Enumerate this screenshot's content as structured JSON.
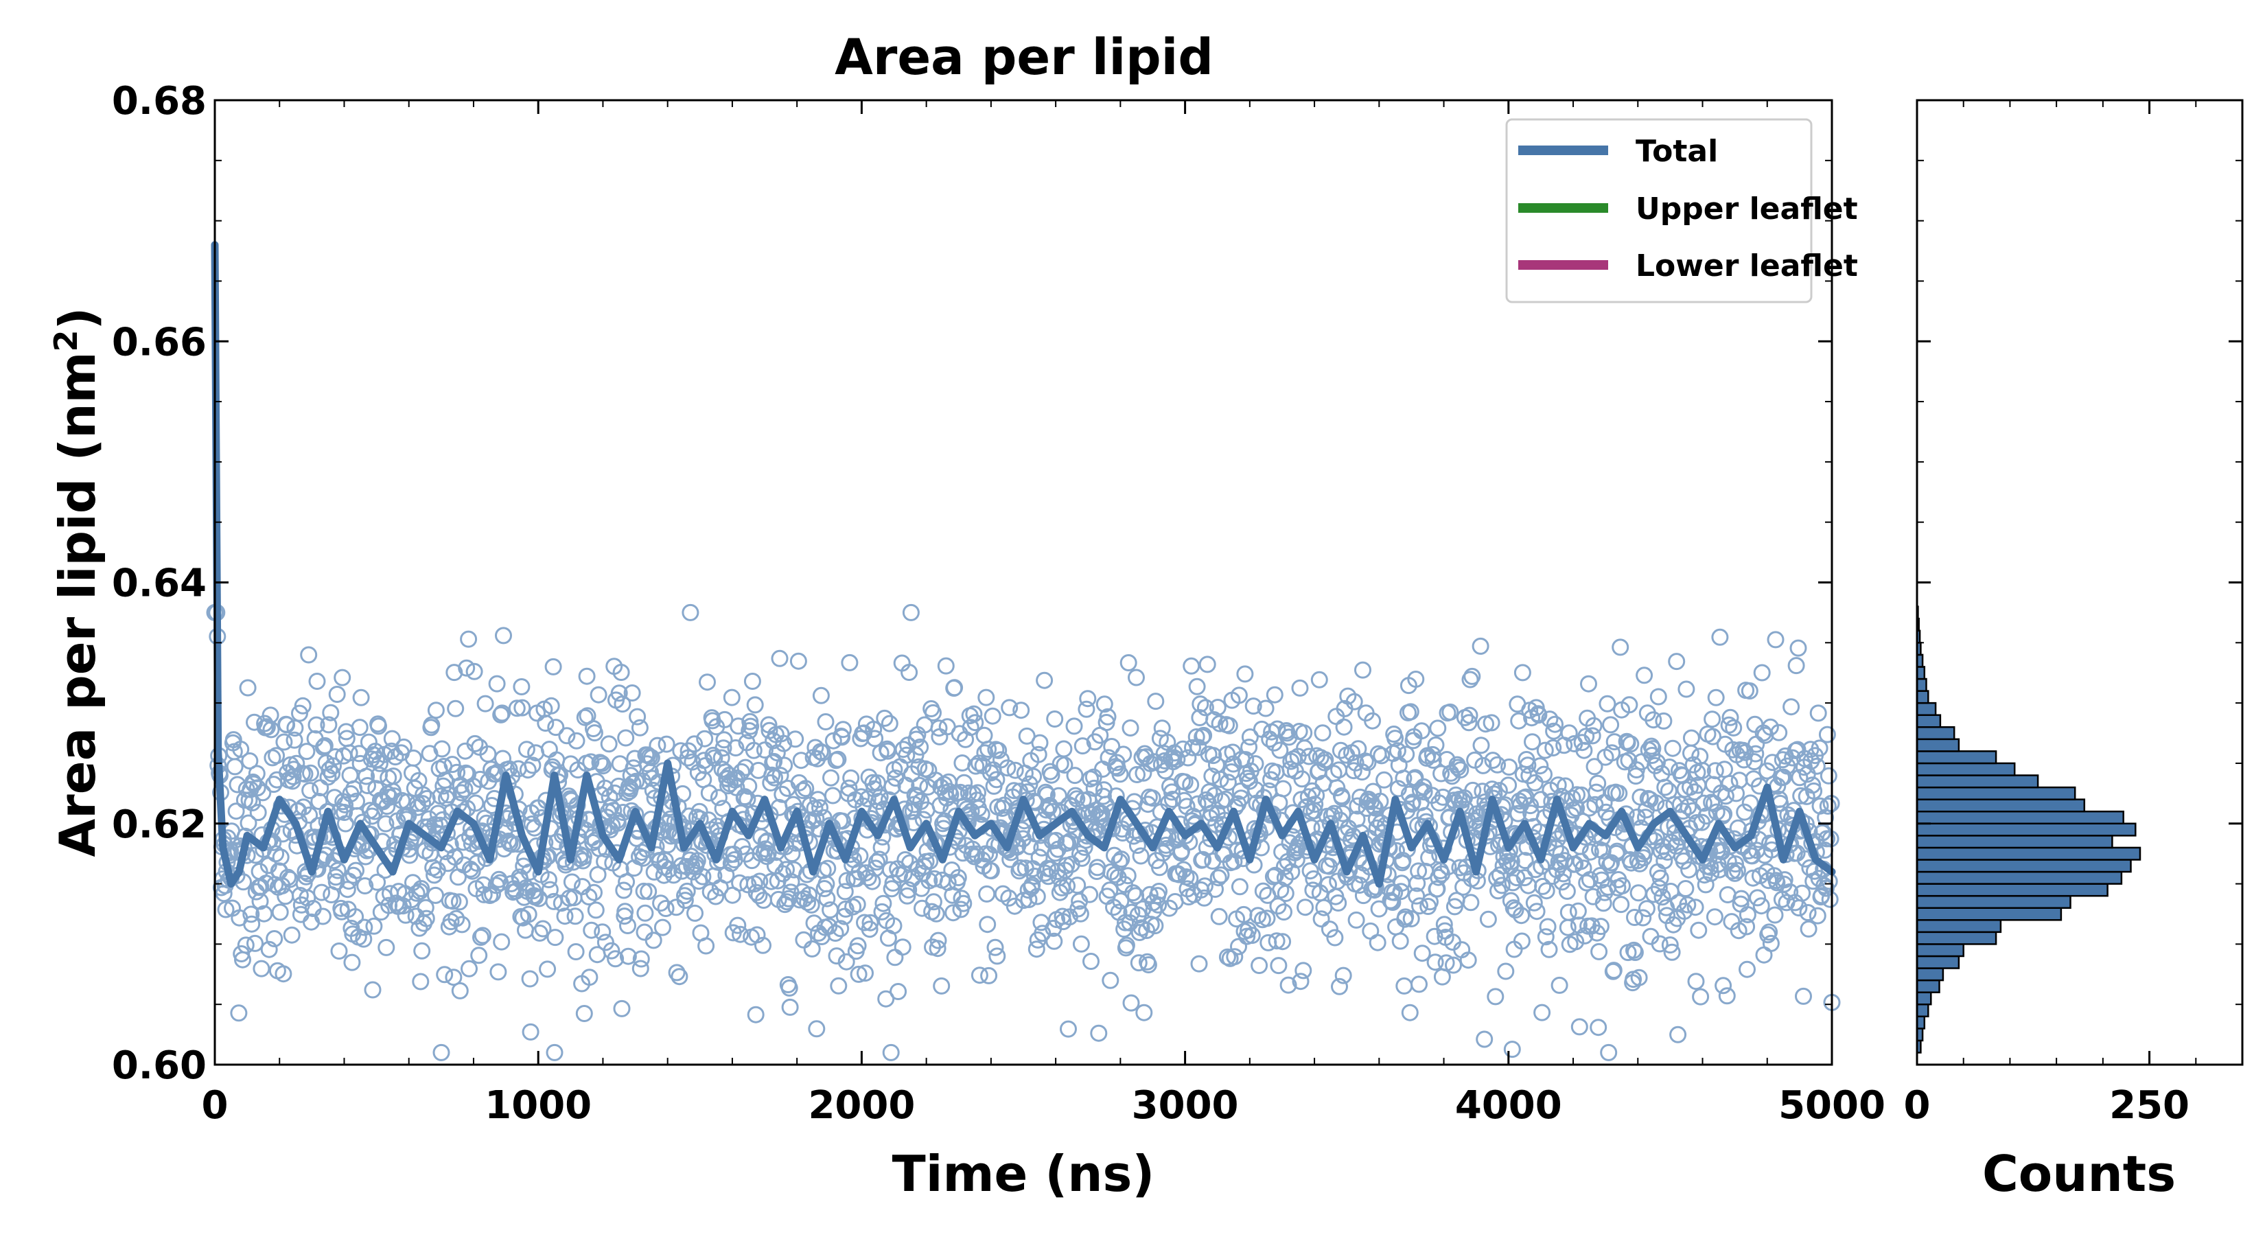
{
  "colors": {
    "total": "#4675a8",
    "upper": "#2a8a2a",
    "lower": "#a8367a",
    "scatter": "#88a8cc",
    "hist_fill": "#4675a8",
    "axis": "#000000"
  },
  "chart_data": [
    {
      "type": "scatter",
      "title": "Area per lipid",
      "xlabel": "Time (ns)",
      "ylabel": "Area per lipid (nm",
      "ylabel_sup": "2",
      "ylabel_close": ")",
      "xlim": [
        0,
        5000
      ],
      "ylim": [
        0.6,
        0.68
      ],
      "xticks": [
        0,
        1000,
        2000,
        3000,
        4000,
        5000
      ],
      "xtick_labels": [
        "0",
        "1000",
        "2000",
        "3000",
        "4000",
        "5000"
      ],
      "yticks": [
        0.6,
        0.62,
        0.64,
        0.66,
        0.68
      ],
      "ytick_labels": [
        "0.60",
        "0.62",
        "0.64",
        "0.66",
        "0.68"
      ],
      "grid": false,
      "legend_position": "top-right",
      "legend": [
        {
          "name": "Total",
          "color_key": "total"
        },
        {
          "name": "Upper leaflet",
          "color_key": "upper"
        },
        {
          "name": "Lower leaflet",
          "color_key": "lower"
        }
      ],
      "scatter_summary": {
        "count": 2500,
        "mean": 0.6195,
        "std": 0.0058,
        "min": 0.601,
        "max": 0.6375
      },
      "running_average": {
        "name": "Total",
        "x": [
          0,
          10,
          25,
          50,
          75,
          100,
          150,
          200,
          250,
          300,
          350,
          400,
          450,
          500,
          550,
          600,
          650,
          700,
          750,
          800,
          850,
          900,
          950,
          1000,
          1050,
          1100,
          1150,
          1200,
          1250,
          1300,
          1350,
          1400,
          1450,
          1500,
          1550,
          1600,
          1650,
          1700,
          1750,
          1800,
          1850,
          1900,
          1950,
          2000,
          2050,
          2100,
          2150,
          2200,
          2250,
          2300,
          2350,
          2400,
          2450,
          2500,
          2550,
          2600,
          2650,
          2700,
          2750,
          2800,
          2850,
          2900,
          2950,
          3000,
          3050,
          3100,
          3150,
          3200,
          3250,
          3300,
          3350,
          3400,
          3450,
          3500,
          3550,
          3600,
          3650,
          3700,
          3750,
          3800,
          3850,
          3900,
          3950,
          4000,
          4050,
          4100,
          4150,
          4200,
          4250,
          4300,
          4350,
          4400,
          4450,
          4500,
          4550,
          4600,
          4650,
          4700,
          4750,
          4800,
          4850,
          4900,
          4950,
          5000
        ],
        "y": [
          0.668,
          0.626,
          0.618,
          0.615,
          0.616,
          0.619,
          0.618,
          0.622,
          0.62,
          0.616,
          0.621,
          0.617,
          0.62,
          0.618,
          0.616,
          0.62,
          0.619,
          0.618,
          0.621,
          0.62,
          0.617,
          0.624,
          0.619,
          0.616,
          0.624,
          0.617,
          0.624,
          0.619,
          0.617,
          0.621,
          0.618,
          0.625,
          0.618,
          0.62,
          0.617,
          0.621,
          0.619,
          0.622,
          0.618,
          0.621,
          0.616,
          0.62,
          0.617,
          0.621,
          0.619,
          0.622,
          0.618,
          0.62,
          0.617,
          0.621,
          0.619,
          0.62,
          0.618,
          0.622,
          0.619,
          0.62,
          0.621,
          0.619,
          0.618,
          0.622,
          0.62,
          0.618,
          0.621,
          0.619,
          0.62,
          0.618,
          0.621,
          0.617,
          0.622,
          0.619,
          0.621,
          0.617,
          0.62,
          0.616,
          0.619,
          0.615,
          0.622,
          0.618,
          0.62,
          0.617,
          0.621,
          0.616,
          0.622,
          0.618,
          0.62,
          0.617,
          0.622,
          0.618,
          0.62,
          0.619,
          0.621,
          0.618,
          0.62,
          0.621,
          0.619,
          0.617,
          0.62,
          0.618,
          0.619,
          0.623,
          0.617,
          0.621,
          0.617,
          0.616
        ]
      }
    },
    {
      "type": "bar",
      "orientation": "horizontal",
      "xlabel": "Counts",
      "xlim": [
        0,
        350
      ],
      "xticks": [
        0,
        250
      ],
      "xtick_labels": [
        "0",
        "250"
      ],
      "ylim": [
        0.6,
        0.68
      ],
      "bin_centers": [
        0.6015,
        0.6025,
        0.6035,
        0.6045,
        0.6055,
        0.6065,
        0.6075,
        0.6085,
        0.6095,
        0.6105,
        0.6115,
        0.6125,
        0.6135,
        0.6145,
        0.6155,
        0.6165,
        0.6175,
        0.6185,
        0.6195,
        0.6205,
        0.6215,
        0.6225,
        0.6235,
        0.6245,
        0.6255,
        0.6265,
        0.6275,
        0.6285,
        0.6295,
        0.6305,
        0.6315,
        0.6325,
        0.6335,
        0.6345,
        0.6355,
        0.6365,
        0.6375
      ],
      "counts": [
        4,
        6,
        8,
        12,
        15,
        24,
        28,
        45,
        50,
        85,
        90,
        155,
        165,
        205,
        220,
        230,
        240,
        210,
        235,
        222,
        180,
        170,
        130,
        105,
        85,
        45,
        40,
        25,
        20,
        12,
        10,
        8,
        6,
        4,
        3,
        2,
        1
      ]
    }
  ]
}
